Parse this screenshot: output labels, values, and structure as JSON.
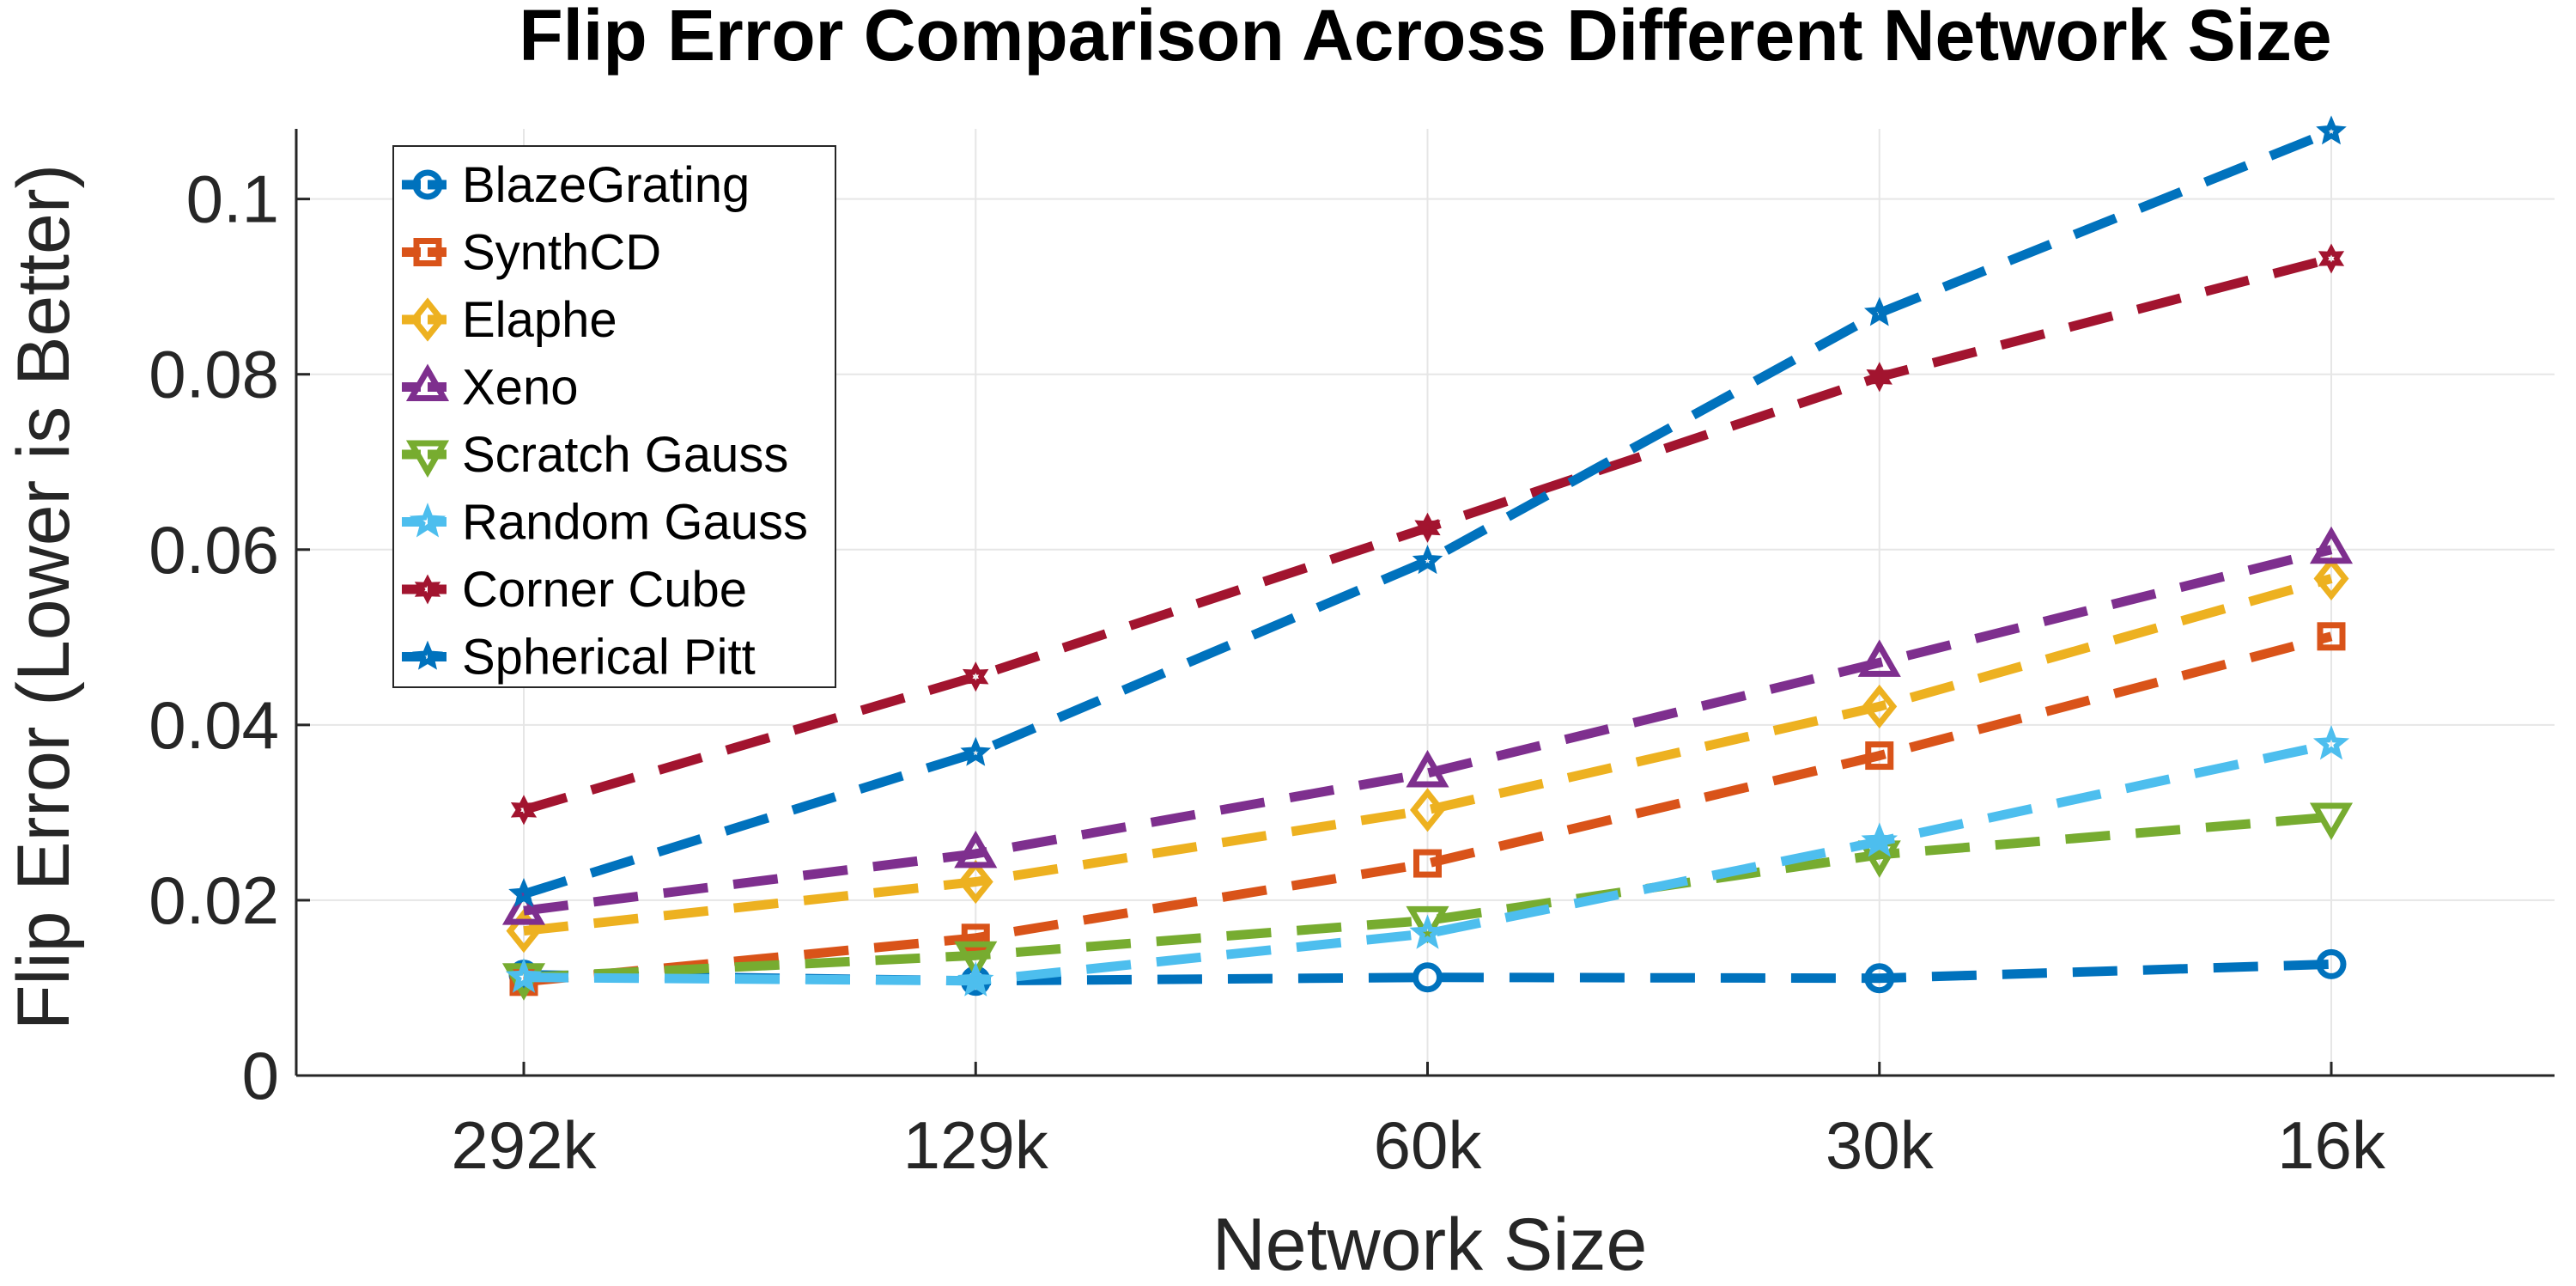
{
  "chart_data": {
    "type": "line",
    "title": "Flip Error Comparison Across Different Network Size",
    "xlabel": "Network Size",
    "ylabel": "Flip Error (Lower is Better)",
    "categories": [
      "292k",
      "129k",
      "60k",
      "30k",
      "16k"
    ],
    "ylim": [
      0,
      0.108
    ],
    "yticks": [
      0,
      0.02,
      0.04,
      0.06,
      0.08,
      0.1
    ],
    "ytick_labels": [
      "0",
      "0.02",
      "0.04",
      "0.06",
      "0.08",
      "0.1"
    ],
    "grid": true,
    "legend_position": "top-left",
    "series": [
      {
        "name": "BlazeGrating",
        "color": "#0072BD",
        "marker": "circle",
        "values": [
          0.0115,
          0.0108,
          0.0112,
          0.0111,
          0.0127
        ]
      },
      {
        "name": "SynthCD",
        "color": "#D95319",
        "marker": "square",
        "values": [
          0.0107,
          0.0157,
          0.0242,
          0.0365,
          0.0501
        ]
      },
      {
        "name": "Elaphe",
        "color": "#EDB120",
        "marker": "diamond",
        "values": [
          0.0165,
          0.0221,
          0.0303,
          0.0421,
          0.0567
        ]
      },
      {
        "name": "Xeno",
        "color": "#7E2F8E",
        "marker": "triangle-up",
        "values": [
          0.0188,
          0.0253,
          0.0345,
          0.0471,
          0.06
        ]
      },
      {
        "name": "Scratch Gauss",
        "color": "#77AC30",
        "marker": "triangle-down",
        "values": [
          0.0112,
          0.0137,
          0.0177,
          0.0252,
          0.0295
        ]
      },
      {
        "name": "Random Gauss",
        "color": "#4DBEEE",
        "marker": "star",
        "values": [
          0.0112,
          0.0108,
          0.0162,
          0.0267,
          0.0378
        ]
      },
      {
        "name": "Corner Cube",
        "color": "#A2142F",
        "marker": "hexagram",
        "values": [
          0.0303,
          0.0455,
          0.0625,
          0.0797,
          0.0932
        ]
      },
      {
        "name": "Spherical Pitt",
        "color": "#0072BD",
        "marker": "pentagram",
        "values": [
          0.0207,
          0.0368,
          0.0587,
          0.087,
          0.1077
        ]
      }
    ]
  }
}
